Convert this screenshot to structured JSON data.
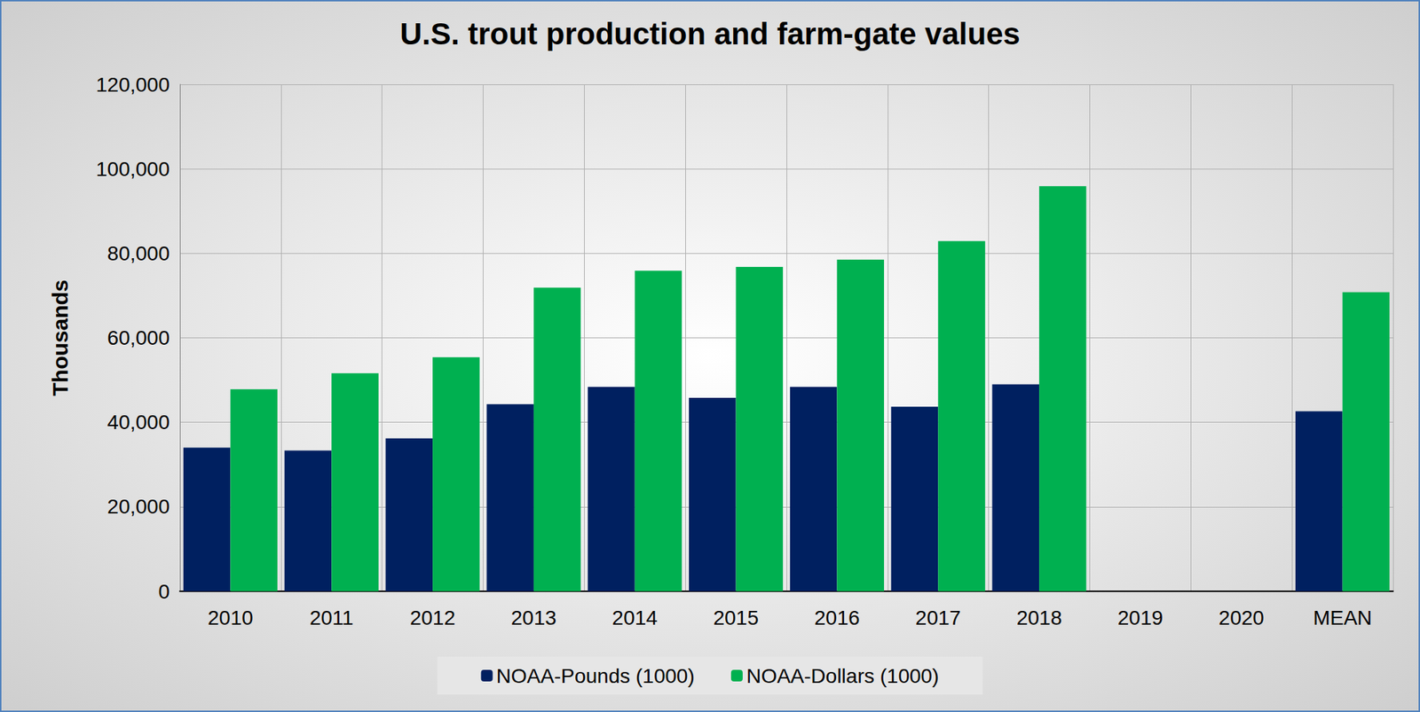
{
  "chart_data": {
    "type": "bar",
    "title": "U.S. trout production and farm-gate values",
    "y_label": "Thousands",
    "categories": [
      "2010",
      "2011",
      "2012",
      "2013",
      "2014",
      "2015",
      "2016",
      "2017",
      "2018",
      "2019",
      "2020",
      "MEAN"
    ],
    "series": [
      {
        "name": "NOAA-Pounds (1000)",
        "color": "#002060",
        "values": [
          34000,
          33300,
          36200,
          44300,
          48400,
          45800,
          48400,
          43700,
          49000,
          null,
          null,
          42600
        ]
      },
      {
        "name": "NOAA-Dollars (1000)",
        "color": "#00b050",
        "values": [
          47800,
          51600,
          55400,
          71900,
          75900,
          76800,
          78500,
          82900,
          95900,
          null,
          null,
          70800
        ]
      }
    ],
    "ylim": [
      0,
      120000
    ],
    "yticks": [
      0,
      {
        "value": 20000,
        "label": "20,000"
      },
      {
        "value": 40000,
        "label": "40,000"
      },
      {
        "value": 60000,
        "label": "60,000"
      },
      {
        "value": 80000,
        "label": "80,000"
      },
      {
        "value": 100000,
        "label": "100,000"
      },
      {
        "value": 120000,
        "label": "120,000"
      }
    ],
    "grid": true,
    "legend": "bottom"
  }
}
